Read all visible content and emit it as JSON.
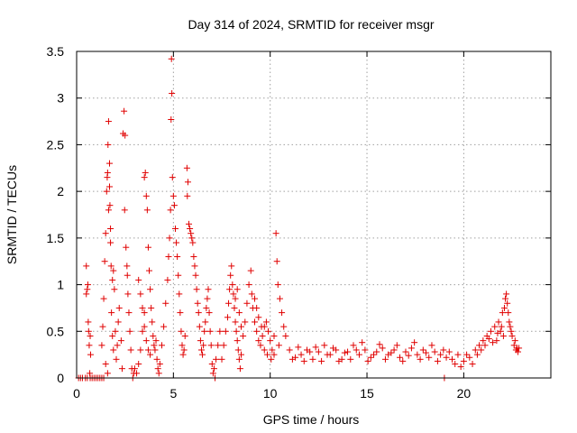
{
  "chart_data": {
    "type": "scatter",
    "title": "Day 314 of 2024, SRMTID for receiver msgr",
    "xlabel": "GPS time / hours",
    "ylabel": "SRMTID / TECUs",
    "xlim": [
      0,
      24.5
    ],
    "ylim": [
      0,
      3.5
    ],
    "xticks": [
      0,
      5,
      10,
      15,
      20
    ],
    "xtick_labels": [
      "0",
      "5",
      "10",
      "15",
      "20"
    ],
    "yticks": [
      0,
      0.5,
      1,
      1.5,
      2,
      2.5,
      3,
      3.5
    ],
    "ytick_labels": [
      "0",
      "0.5",
      "1",
      "1.5",
      "2",
      "2.5",
      "3",
      "3.5"
    ],
    "grid": true,
    "marker": "+",
    "color": "#e00000",
    "series": [
      {
        "name": "msgr",
        "points": [
          [
            0.1,
            0.0
          ],
          [
            0.2,
            0.0
          ],
          [
            0.3,
            0.0
          ],
          [
            0.45,
            0.0
          ],
          [
            0.55,
            0.0
          ],
          [
            0.7,
            0.0
          ],
          [
            0.8,
            0.0
          ],
          [
            0.9,
            0.0
          ],
          [
            1.0,
            0.0
          ],
          [
            1.1,
            0.0
          ],
          [
            1.2,
            0.0
          ],
          [
            1.3,
            0.0
          ],
          [
            1.4,
            0.0
          ],
          [
            0.5,
            1.2
          ],
          [
            0.55,
            0.95
          ],
          [
            0.6,
            0.6
          ],
          [
            0.62,
            0.5
          ],
          [
            0.65,
            0.35
          ],
          [
            0.7,
            0.45
          ],
          [
            0.72,
            0.25
          ],
          [
            0.5,
            0.9
          ],
          [
            0.58,
            1.0
          ],
          [
            0.68,
            0.05
          ],
          [
            1.3,
            0.35
          ],
          [
            1.35,
            0.55
          ],
          [
            1.4,
            0.85
          ],
          [
            1.45,
            1.25
          ],
          [
            1.5,
            1.55
          ],
          [
            1.55,
            2.0
          ],
          [
            1.58,
            2.15
          ],
          [
            1.6,
            2.2
          ],
          [
            1.62,
            2.5
          ],
          [
            1.65,
            2.75
          ],
          [
            1.7,
            2.3
          ],
          [
            1.72,
            1.85
          ],
          [
            1.75,
            1.45
          ],
          [
            1.78,
            1.2
          ],
          [
            1.8,
            0.7
          ],
          [
            1.85,
            0.45
          ],
          [
            1.9,
            0.3
          ],
          [
            1.5,
            0.15
          ],
          [
            1.6,
            0.05
          ],
          [
            1.65,
            1.8
          ],
          [
            1.7,
            2.05
          ],
          [
            1.75,
            1.6
          ],
          [
            1.85,
            1.05
          ],
          [
            1.9,
            1.15
          ],
          [
            1.95,
            0.95
          ],
          [
            2.0,
            0.5
          ],
          [
            2.05,
            0.2
          ],
          [
            2.1,
            0.35
          ],
          [
            2.15,
            0.6
          ],
          [
            2.2,
            0.75
          ],
          [
            2.3,
            0.4
          ],
          [
            2.35,
            0.1
          ],
          [
            2.4,
            2.62
          ],
          [
            2.45,
            2.86
          ],
          [
            2.5,
            2.6
          ],
          [
            2.48,
            1.8
          ],
          [
            2.55,
            1.4
          ],
          [
            2.6,
            1.2
          ],
          [
            2.62,
            1.1
          ],
          [
            2.65,
            0.9
          ],
          [
            2.7,
            0.7
          ],
          [
            2.75,
            0.5
          ],
          [
            2.8,
            0.3
          ],
          [
            2.85,
            0.1
          ],
          [
            2.9,
            0.0
          ],
          [
            2.95,
            0.05
          ],
          [
            3.0,
            0.1
          ],
          [
            3.1,
            0.05
          ],
          [
            3.2,
            0.15
          ],
          [
            3.3,
            0.3
          ],
          [
            3.4,
            0.5
          ],
          [
            3.5,
            0.7
          ],
          [
            3.2,
            1.05
          ],
          [
            3.3,
            0.9
          ],
          [
            3.4,
            0.75
          ],
          [
            3.5,
            0.55
          ],
          [
            3.6,
            0.4
          ],
          [
            3.7,
            0.3
          ],
          [
            3.8,
            0.25
          ],
          [
            3.5,
            2.15
          ],
          [
            3.55,
            2.2
          ],
          [
            3.6,
            1.95
          ],
          [
            3.65,
            1.8
          ],
          [
            3.7,
            1.4
          ],
          [
            3.75,
            1.15
          ],
          [
            3.8,
            0.95
          ],
          [
            3.85,
            0.75
          ],
          [
            3.9,
            0.6
          ],
          [
            3.95,
            0.45
          ],
          [
            4.0,
            0.35
          ],
          [
            4.05,
            0.3
          ],
          [
            4.1,
            0.4
          ],
          [
            4.15,
            0.2
          ],
          [
            4.2,
            0.1
          ],
          [
            4.25,
            0.05
          ],
          [
            4.3,
            0.15
          ],
          [
            4.4,
            0.35
          ],
          [
            4.5,
            0.55
          ],
          [
            4.6,
            0.8
          ],
          [
            4.7,
            1.05
          ],
          [
            4.75,
            1.3
          ],
          [
            4.8,
            1.5
          ],
          [
            4.85,
            1.8
          ],
          [
            4.9,
            3.42
          ],
          [
            4.92,
            3.05
          ],
          [
            4.88,
            2.77
          ],
          [
            4.95,
            2.15
          ],
          [
            5.0,
            1.95
          ],
          [
            5.05,
            1.85
          ],
          [
            5.1,
            1.6
          ],
          [
            5.15,
            1.45
          ],
          [
            5.2,
            1.3
          ],
          [
            5.25,
            1.1
          ],
          [
            5.3,
            0.9
          ],
          [
            5.35,
            0.7
          ],
          [
            5.4,
            0.5
          ],
          [
            5.45,
            0.35
          ],
          [
            5.5,
            0.25
          ],
          [
            5.55,
            0.3
          ],
          [
            5.6,
            0.45
          ],
          [
            5.7,
            2.25
          ],
          [
            5.75,
            2.1
          ],
          [
            5.72,
            1.95
          ],
          [
            5.8,
            1.65
          ],
          [
            5.85,
            1.6
          ],
          [
            5.9,
            1.55
          ],
          [
            5.95,
            1.5
          ],
          [
            6.0,
            1.45
          ],
          [
            6.05,
            1.3
          ],
          [
            6.1,
            1.2
          ],
          [
            6.15,
            1.1
          ],
          [
            6.2,
            0.95
          ],
          [
            6.25,
            0.8
          ],
          [
            6.3,
            0.7
          ],
          [
            6.35,
            0.55
          ],
          [
            6.4,
            0.4
          ],
          [
            6.45,
            0.3
          ],
          [
            6.5,
            0.25
          ],
          [
            6.55,
            0.35
          ],
          [
            6.6,
            0.5
          ],
          [
            6.65,
            0.6
          ],
          [
            6.7,
            0.75
          ],
          [
            6.75,
            0.85
          ],
          [
            6.8,
            0.95
          ],
          [
            6.85,
            0.7
          ],
          [
            6.9,
            0.5
          ],
          [
            6.95,
            0.35
          ],
          [
            7.0,
            0.15
          ],
          [
            7.05,
            0.05
          ],
          [
            7.1,
            0.1
          ],
          [
            7.15,
            0.0
          ],
          [
            7.2,
            0.2
          ],
          [
            7.3,
            0.35
          ],
          [
            7.4,
            0.5
          ],
          [
            7.5,
            0.2
          ],
          [
            7.6,
            0.35
          ],
          [
            7.7,
            0.5
          ],
          [
            7.8,
            0.65
          ],
          [
            7.85,
            0.8
          ],
          [
            7.9,
            0.95
          ],
          [
            7.95,
            1.1
          ],
          [
            8.0,
            1.2
          ],
          [
            8.05,
            1.0
          ],
          [
            8.1,
            0.9
          ],
          [
            8.15,
            0.75
          ],
          [
            8.2,
            0.6
          ],
          [
            8.25,
            0.5
          ],
          [
            8.3,
            0.4
          ],
          [
            8.35,
            0.3
          ],
          [
            8.4,
            0.2
          ],
          [
            8.45,
            0.1
          ],
          [
            8.5,
            0.25
          ],
          [
            8.6,
            0.45
          ],
          [
            8.7,
            0.6
          ],
          [
            8.8,
            0.8
          ],
          [
            8.9,
            1.0
          ],
          [
            9.0,
            1.15
          ],
          [
            9.05,
            0.9
          ],
          [
            9.1,
            0.75
          ],
          [
            9.2,
            0.6
          ],
          [
            9.3,
            0.5
          ],
          [
            9.4,
            0.4
          ],
          [
            9.5,
            0.35
          ],
          [
            9.6,
            0.45
          ],
          [
            9.7,
            0.55
          ],
          [
            9.8,
            0.6
          ],
          [
            9.9,
            0.5
          ],
          [
            10.0,
            0.4
          ],
          [
            10.1,
            0.3
          ],
          [
            10.2,
            0.25
          ],
          [
            10.3,
            1.55
          ],
          [
            10.35,
            1.25
          ],
          [
            10.4,
            1.0
          ],
          [
            10.5,
            0.85
          ],
          [
            10.6,
            0.7
          ],
          [
            10.7,
            0.55
          ],
          [
            10.8,
            0.45
          ],
          [
            8.2,
            0.85
          ],
          [
            8.3,
            0.95
          ],
          [
            8.4,
            0.7
          ],
          [
            8.5,
            0.55
          ],
          [
            9.2,
            0.85
          ],
          [
            9.3,
            0.75
          ],
          [
            9.4,
            0.65
          ],
          [
            9.55,
            0.55
          ],
          [
            9.7,
            0.3
          ],
          [
            9.85,
            0.25
          ],
          [
            10.05,
            0.2
          ],
          [
            10.2,
            0.45
          ],
          [
            10.45,
            0.35
          ],
          [
            11.0,
            0.3
          ],
          [
            11.3,
            0.22
          ],
          [
            11.6,
            0.25
          ],
          [
            11.9,
            0.3
          ],
          [
            12.2,
            0.2
          ],
          [
            12.5,
            0.28
          ],
          [
            12.8,
            0.35
          ],
          [
            13.1,
            0.25
          ],
          [
            13.4,
            0.3
          ],
          [
            13.7,
            0.2
          ],
          [
            14.0,
            0.28
          ],
          [
            14.3,
            0.35
          ],
          [
            14.6,
            0.25
          ],
          [
            14.9,
            0.3
          ],
          [
            15.2,
            0.22
          ],
          [
            15.5,
            0.28
          ],
          [
            15.8,
            0.32
          ],
          [
            16.1,
            0.25
          ],
          [
            16.4,
            0.3
          ],
          [
            16.7,
            0.22
          ],
          [
            17.0,
            0.28
          ],
          [
            17.3,
            0.32
          ],
          [
            17.6,
            0.25
          ],
          [
            17.9,
            0.3
          ],
          [
            18.2,
            0.22
          ],
          [
            18.5,
            0.28
          ],
          [
            18.8,
            0.25
          ],
          [
            19.1,
            0.22
          ],
          [
            19.4,
            0.2
          ],
          [
            19.7,
            0.25
          ],
          [
            20.0,
            0.18
          ],
          [
            20.3,
            0.22
          ],
          [
            11.15,
            0.2
          ],
          [
            11.45,
            0.33
          ],
          [
            11.75,
            0.18
          ],
          [
            12.05,
            0.28
          ],
          [
            12.35,
            0.33
          ],
          [
            12.65,
            0.18
          ],
          [
            12.95,
            0.25
          ],
          [
            13.25,
            0.32
          ],
          [
            13.55,
            0.18
          ],
          [
            13.85,
            0.27
          ],
          [
            14.15,
            0.2
          ],
          [
            14.45,
            0.3
          ],
          [
            14.75,
            0.38
          ],
          [
            15.05,
            0.18
          ],
          [
            15.35,
            0.25
          ],
          [
            15.65,
            0.36
          ],
          [
            15.95,
            0.2
          ],
          [
            16.25,
            0.27
          ],
          [
            16.55,
            0.35
          ],
          [
            16.85,
            0.18
          ],
          [
            17.15,
            0.24
          ],
          [
            17.45,
            0.38
          ],
          [
            17.75,
            0.2
          ],
          [
            18.05,
            0.27
          ],
          [
            18.35,
            0.35
          ],
          [
            18.65,
            0.18
          ],
          [
            18.95,
            0.3
          ],
          [
            19.25,
            0.28
          ],
          [
            19.55,
            0.15
          ],
          [
            19.85,
            0.12
          ],
          [
            20.15,
            0.25
          ],
          [
            20.45,
            0.15
          ],
          [
            19.0,
            0.0
          ],
          [
            20.6,
            0.3
          ],
          [
            20.8,
            0.35
          ],
          [
            21.0,
            0.4
          ],
          [
            21.2,
            0.45
          ],
          [
            21.4,
            0.5
          ],
          [
            21.6,
            0.55
          ],
          [
            21.7,
            0.4
          ],
          [
            21.8,
            0.6
          ],
          [
            21.9,
            0.5
          ],
          [
            22.0,
            0.7
          ],
          [
            22.1,
            0.75
          ],
          [
            22.15,
            0.85
          ],
          [
            22.2,
            0.9
          ],
          [
            22.25,
            0.8
          ],
          [
            22.3,
            0.7
          ],
          [
            22.35,
            0.6
          ],
          [
            22.4,
            0.55
          ],
          [
            22.5,
            0.45
          ],
          [
            22.6,
            0.35
          ],
          [
            22.7,
            0.3
          ],
          [
            22.8,
            0.28
          ],
          [
            22.85,
            0.32
          ],
          [
            20.7,
            0.25
          ],
          [
            20.9,
            0.3
          ],
          [
            21.1,
            0.35
          ],
          [
            21.3,
            0.42
          ],
          [
            21.5,
            0.38
          ],
          [
            21.75,
            0.48
          ],
          [
            21.95,
            0.55
          ],
          [
            22.05,
            0.45
          ],
          [
            22.45,
            0.5
          ],
          [
            22.65,
            0.4
          ],
          [
            22.75,
            0.32
          ]
        ]
      }
    ]
  }
}
